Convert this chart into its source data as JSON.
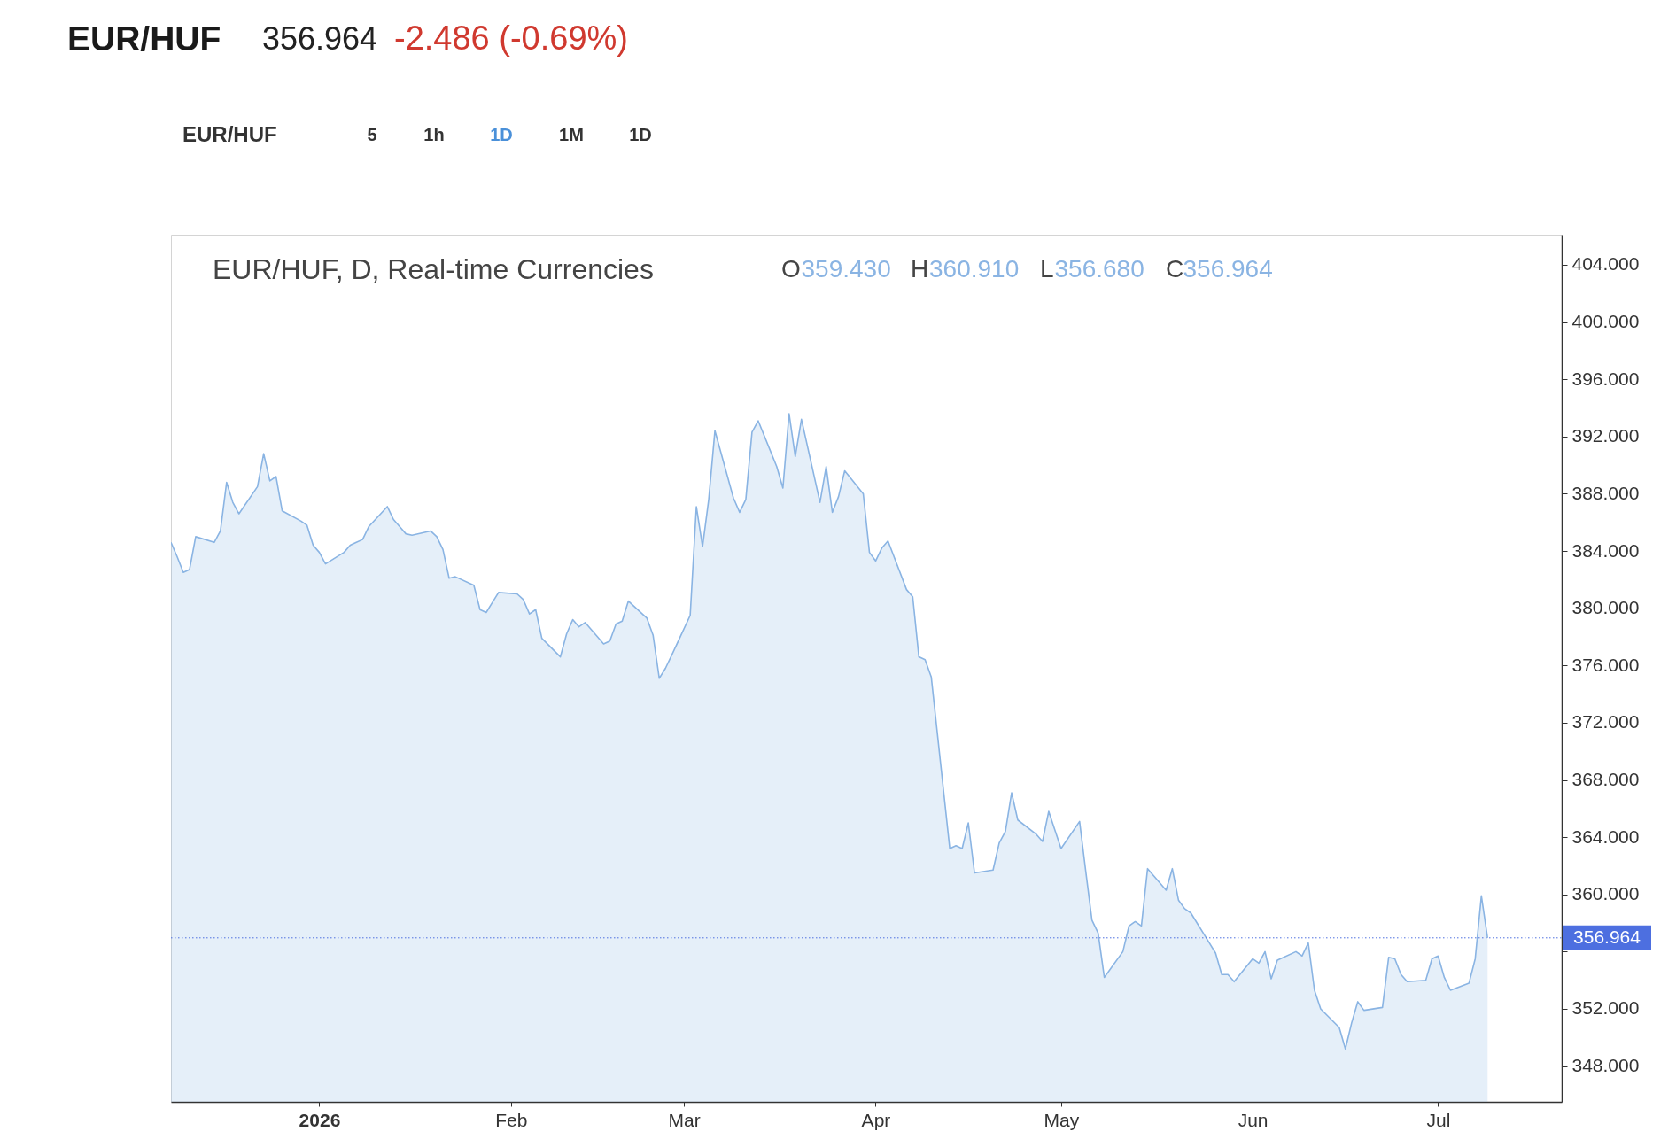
{
  "chart_data": {
    "type": "area",
    "title": "EUR/HUF",
    "subtitle": "356.964",
    "annotations": [
      "-2.486 (-0.69%)",
      "EUR/HUF, D, Real-time Currencies",
      "O359.430",
      "H360.910",
      "L356.680",
      "C356.964",
      "EUR/HUF",
      "5",
      "1h",
      "1D",
      "1M",
      "1D"
    ],
    "x": [
      "2025-12-08",
      "2025-12-09",
      "2025-12-10",
      "2025-12-11",
      "2025-12-12",
      "2025-12-15",
      "2025-12-16",
      "2025-12-17",
      "2025-12-18",
      "2025-12-19",
      "2025-12-22",
      "2025-12-23",
      "2025-12-24",
      "2025-12-25",
      "2025-12-26",
      "2025-12-29",
      "2025-12-30",
      "2025-12-31",
      "2026-01-01",
      "2026-01-02",
      "2026-01-05",
      "2026-01-06",
      "2026-01-07",
      "2026-01-08",
      "2026-01-09",
      "2026-01-12",
      "2026-01-13",
      "2026-01-14",
      "2026-01-15",
      "2026-01-16",
      "2026-01-19",
      "2026-01-20",
      "2026-01-21",
      "2026-01-22",
      "2026-01-23",
      "2026-01-26",
      "2026-01-27",
      "2026-01-28",
      "2026-01-29",
      "2026-01-30",
      "2026-02-02",
      "2026-02-03",
      "2026-02-04",
      "2026-02-05",
      "2026-02-06",
      "2026-02-09",
      "2026-02-10",
      "2026-02-11",
      "2026-02-12",
      "2026-02-13",
      "2026-02-16",
      "2026-02-17",
      "2026-02-18",
      "2026-02-19",
      "2026-02-20",
      "2026-02-23",
      "2026-02-24",
      "2026-02-25",
      "2026-02-26",
      "2026-02-27",
      "2026-03-02",
      "2026-03-03",
      "2026-03-04",
      "2026-03-05",
      "2026-03-06",
      "2026-03-09",
      "2026-03-10",
      "2026-03-11",
      "2026-03-12",
      "2026-03-13",
      "2026-03-16",
      "2026-03-17",
      "2026-03-18",
      "2026-03-19",
      "2026-03-20",
      "2026-03-23",
      "2026-03-24",
      "2026-03-25",
      "2026-03-26",
      "2026-03-27",
      "2026-03-30",
      "2026-03-31",
      "2026-04-01",
      "2026-04-02",
      "2026-04-03",
      "2026-04-06",
      "2026-04-07",
      "2026-04-08",
      "2026-04-09",
      "2026-04-10",
      "2026-04-13",
      "2026-04-14",
      "2026-04-15",
      "2026-04-16",
      "2026-04-17",
      "2026-04-20",
      "2026-04-21",
      "2026-04-22",
      "2026-04-23",
      "2026-04-24",
      "2026-04-27",
      "2026-04-28",
      "2026-04-29",
      "2026-04-30",
      "2026-05-01",
      "2026-05-04",
      "2026-05-05",
      "2026-05-06",
      "2026-05-07",
      "2026-05-08",
      "2026-05-11",
      "2026-05-12",
      "2026-05-13",
      "2026-05-14",
      "2026-05-15",
      "2026-05-18",
      "2026-05-19",
      "2026-05-20",
      "2026-05-21",
      "2026-05-22",
      "2026-05-25",
      "2026-05-26",
      "2026-05-27",
      "2026-05-28",
      "2026-05-29",
      "2026-06-01",
      "2026-06-02",
      "2026-06-03",
      "2026-06-04",
      "2026-06-05",
      "2026-06-08",
      "2026-06-09",
      "2026-06-10",
      "2026-06-11",
      "2026-06-12",
      "2026-06-15",
      "2026-06-16",
      "2026-06-17",
      "2026-06-18",
      "2026-06-19",
      "2026-06-22",
      "2026-06-23",
      "2026-06-24",
      "2026-06-25",
      "2026-06-26",
      "2026-06-29",
      "2026-06-30",
      "2026-07-01",
      "2026-07-02",
      "2026-07-03",
      "2026-07-06",
      "2026-07-07",
      "2026-07-08",
      "2026-07-09"
    ],
    "series": [
      {
        "color": "#8ab4e3",
        "values": [
          384.6,
          383.6,
          382.5,
          382.7,
          385.0,
          384.6,
          385.4,
          388.8,
          387.4,
          386.6,
          388.5,
          390.8,
          388.9,
          389.2,
          386.8,
          386.1,
          385.8,
          384.4,
          383.9,
          383.1,
          383.9,
          384.4,
          384.6,
          384.8,
          385.7,
          387.1,
          386.2,
          385.7,
          385.2,
          385.1,
          385.4,
          385.0,
          384.1,
          382.1,
          382.2,
          381.6,
          379.9,
          379.7,
          380.4,
          381.1,
          381.0,
          380.6,
          379.6,
          379.9,
          377.9,
          376.6,
          378.2,
          379.2,
          378.7,
          379.0,
          377.5,
          377.7,
          378.9,
          379.1,
          380.5,
          379.3,
          378.1,
          375.1,
          375.8,
          376.7,
          379.5,
          387.1,
          384.3,
          387.6,
          392.4,
          387.7,
          386.7,
          387.6,
          392.3,
          393.1,
          389.9,
          388.4,
          393.6,
          390.6,
          393.2,
          387.4,
          389.9,
          386.7,
          387.8,
          389.6,
          388.0,
          383.9,
          383.3,
          384.2,
          384.7,
          381.3,
          380.8,
          376.6,
          376.4,
          375.2,
          363.2,
          363.4,
          363.2,
          365.0,
          361.5,
          361.7,
          363.6,
          364.4,
          367.1,
          365.2,
          364.2,
          363.7,
          365.8,
          364.5,
          363.2,
          365.1,
          361.6,
          358.2,
          357.3,
          354.2,
          356.0,
          357.8,
          358.1,
          357.8,
          361.8,
          360.3,
          361.8,
          359.6,
          359.0,
          358.7,
          356.6,
          355.9,
          354.4,
          354.4,
          353.9,
          355.5,
          355.2,
          356.0,
          354.1,
          355.4,
          356.0,
          355.7,
          356.6,
          353.3,
          352.0,
          350.7,
          349.2,
          351.0,
          352.5,
          351.9,
          352.1,
          355.6,
          355.5,
          354.4,
          353.9,
          354.0,
          355.5,
          355.7,
          354.2,
          353.3,
          353.8,
          355.5,
          359.9,
          356.964
        ]
      }
    ],
    "xlim": [
      "2025-12-08",
      "2026-07-21"
    ],
    "xticks": [
      {
        "value": "2026-01-01",
        "label": "2026"
      },
      {
        "value": "2026-02-01",
        "label": "Feb"
      },
      {
        "value": "2026-03-01",
        "label": "Mar"
      },
      {
        "value": "2026-04-01",
        "label": "Apr"
      },
      {
        "value": "2026-05-01",
        "label": "May"
      },
      {
        "value": "2026-06-01",
        "label": "Jun"
      },
      {
        "value": "2026-07-01",
        "label": "Jul"
      }
    ],
    "ylim": [
      345.5,
      406.1
    ],
    "yticks": [
      {
        "value": 348,
        "label": "348.000"
      },
      {
        "value": 352,
        "label": "352.000"
      },
      {
        "value": 356,
        "label": null
      },
      {
        "value": 360,
        "label": "360.000"
      },
      {
        "value": 364,
        "label": "364.000"
      },
      {
        "value": 368,
        "label": "368.000"
      },
      {
        "value": 372,
        "label": "372.000"
      },
      {
        "value": 376,
        "label": "376.000"
      },
      {
        "value": 380,
        "label": "380.000"
      },
      {
        "value": 384,
        "label": "384.000"
      },
      {
        "value": 388,
        "label": "388.000"
      },
      {
        "value": 392,
        "label": "392.000"
      },
      {
        "value": 396,
        "label": "396.000"
      },
      {
        "value": 400,
        "label": "400.000"
      },
      {
        "value": 404,
        "label": "404.000"
      }
    ],
    "ref_lines": [
      {
        "axis": "y",
        "value": 356.964,
        "label": "356.964",
        "color": "#4d6fe0",
        "line_style": "dotted"
      }
    ],
    "grid": false
  }
}
